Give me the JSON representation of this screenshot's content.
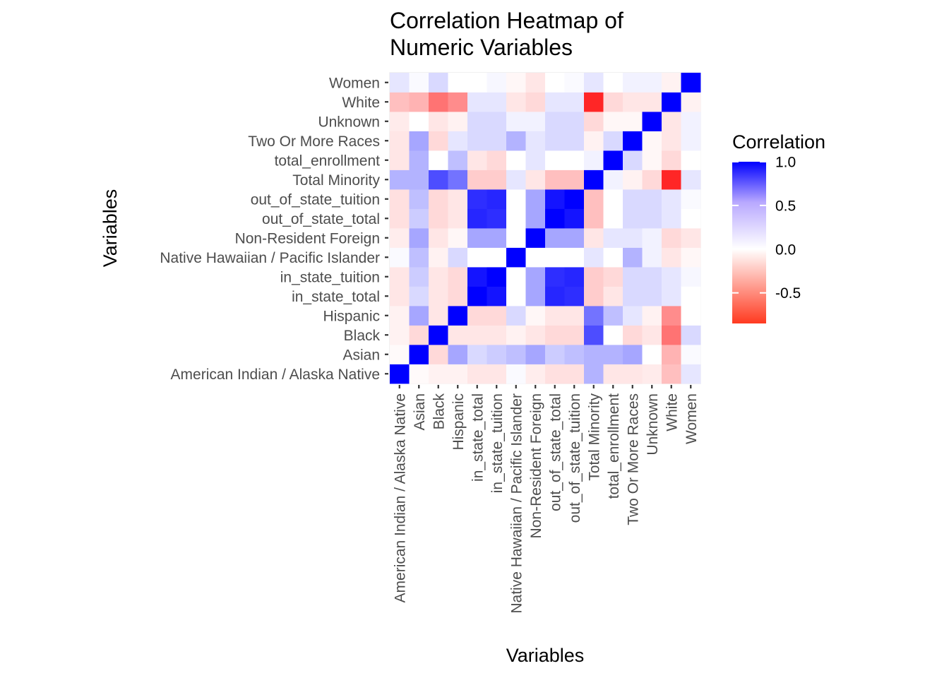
{
  "chart_data": {
    "type": "heatmap",
    "title": "Correlation Heatmap of Numeric Variables",
    "title_lines": [
      "Correlation Heatmap of",
      "Numeric Variables"
    ],
    "xlabel": "Variables",
    "ylabel": "Variables",
    "categories": [
      "American Indian / Alaska Native",
      "Asian",
      "Black",
      "Hispanic",
      "in_state_total",
      "in_state_tuition",
      "Native Hawaiian / Pacific Islander",
      "Non-Resident Foreign",
      "out_of_state_total",
      "out_of_state_tuition",
      "Total Minority",
      "total_enrollment",
      "Two Or More Races",
      "Unknown",
      "White",
      "Women"
    ],
    "values": [
      [
        1.0,
        -0.02,
        -0.05,
        -0.05,
        -0.1,
        -0.1,
        0.02,
        -0.07,
        -0.12,
        -0.12,
        0.3,
        -0.1,
        -0.1,
        -0.08,
        -0.25,
        0.1
      ],
      [
        -0.02,
        1.0,
        -0.15,
        0.35,
        0.15,
        0.2,
        0.25,
        0.35,
        0.2,
        0.25,
        0.3,
        0.3,
        0.35,
        0.0,
        -0.3,
        0.02
      ],
      [
        -0.05,
        -0.15,
        1.0,
        -0.1,
        -0.1,
        -0.1,
        -0.05,
        -0.1,
        -0.15,
        -0.15,
        0.7,
        0.0,
        -0.15,
        -0.1,
        -0.55,
        0.15
      ],
      [
        -0.05,
        0.35,
        -0.1,
        1.0,
        -0.15,
        -0.15,
        0.15,
        -0.03,
        -0.1,
        -0.1,
        0.55,
        0.25,
        0.1,
        -0.05,
        -0.45,
        0.0
      ],
      [
        -0.1,
        0.15,
        -0.1,
        -0.15,
        1.0,
        0.92,
        0.0,
        0.35,
        0.85,
        0.82,
        -0.2,
        -0.1,
        0.15,
        0.15,
        0.1,
        0.0
      ],
      [
        -0.1,
        0.2,
        -0.1,
        -0.15,
        0.92,
        1.0,
        0.0,
        0.35,
        0.82,
        0.85,
        -0.2,
        -0.15,
        0.15,
        0.15,
        0.1,
        0.03
      ],
      [
        0.02,
        0.25,
        -0.05,
        0.15,
        0.0,
        0.0,
        1.0,
        0.0,
        0.0,
        0.0,
        0.1,
        0.0,
        0.3,
        0.05,
        -0.1,
        -0.03
      ],
      [
        -0.07,
        0.35,
        -0.1,
        -0.03,
        0.35,
        0.35,
        0.0,
        1.0,
        0.35,
        0.35,
        -0.1,
        0.1,
        0.1,
        0.05,
        -0.15,
        -0.1
      ],
      [
        -0.12,
        0.2,
        -0.15,
        -0.1,
        0.85,
        0.82,
        0.0,
        0.35,
        1.0,
        0.92,
        -0.25,
        0.0,
        0.15,
        0.15,
        0.1,
        0.0
      ],
      [
        -0.12,
        0.25,
        -0.15,
        -0.1,
        0.82,
        0.85,
        0.0,
        0.35,
        0.92,
        1.0,
        -0.25,
        0.0,
        0.15,
        0.15,
        0.1,
        0.02
      ],
      [
        0.3,
        0.3,
        0.7,
        0.55,
        -0.2,
        -0.2,
        0.1,
        -0.1,
        -0.25,
        -0.25,
        1.0,
        0.05,
        -0.05,
        -0.15,
        -0.85,
        0.1
      ],
      [
        -0.1,
        0.3,
        0.0,
        0.25,
        -0.1,
        -0.15,
        0.0,
        0.1,
        0.0,
        0.0,
        0.05,
        1.0,
        0.15,
        -0.03,
        -0.15,
        0.0
      ],
      [
        -0.1,
        0.35,
        -0.15,
        0.1,
        0.15,
        0.15,
        0.3,
        0.1,
        0.15,
        0.15,
        -0.05,
        0.15,
        1.0,
        -0.03,
        -0.1,
        0.05
      ],
      [
        -0.08,
        0.0,
        -0.1,
        -0.05,
        0.15,
        0.15,
        0.05,
        0.05,
        0.15,
        0.15,
        -0.15,
        -0.03,
        -0.03,
        1.0,
        -0.1,
        0.05
      ],
      [
        -0.25,
        -0.3,
        -0.55,
        -0.45,
        0.1,
        0.1,
        -0.1,
        -0.15,
        0.1,
        0.1,
        -0.85,
        -0.15,
        -0.1,
        -0.1,
        1.0,
        -0.05
      ],
      [
        0.1,
        0.02,
        0.15,
        0.0,
        0.0,
        0.03,
        -0.03,
        -0.1,
        0.0,
        0.02,
        0.1,
        0.0,
        0.05,
        0.05,
        -0.05,
        1.0
      ]
    ],
    "legend": {
      "title": "Correlation",
      "position": "right",
      "breaks": [
        1.0,
        0.5,
        0.0,
        -0.5
      ],
      "break_labels": [
        "1.0",
        "0.5",
        "0.0",
        "-0.5"
      ],
      "limits": [
        -0.85,
        1.0
      ],
      "low_color": "#ff0000",
      "mid_color": "#ffffff",
      "high_color": "#0000ff"
    },
    "grid": true
  }
}
